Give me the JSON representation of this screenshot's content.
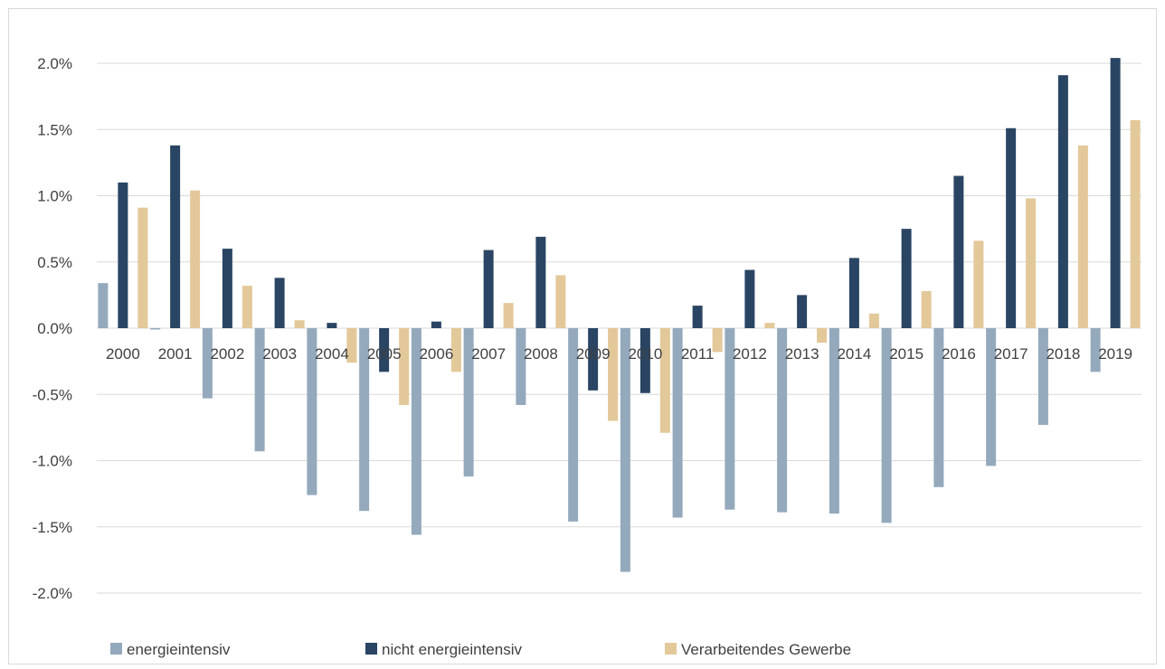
{
  "chart_data": {
    "type": "bar",
    "title": "",
    "xlabel": "",
    "ylabel": "",
    "categories": [
      "2000",
      "2001",
      "2002",
      "2003",
      "2004",
      "2005",
      "2006",
      "2007",
      "2008",
      "2009",
      "2010",
      "2011",
      "2012",
      "2013",
      "2014",
      "2015",
      "2016",
      "2017",
      "2018",
      "2019"
    ],
    "series": [
      {
        "name": "energieintensiv",
        "color": "#94a9bc",
        "values": [
          0.34,
          -0.01,
          -0.53,
          -0.93,
          -1.26,
          -1.38,
          -1.56,
          -1.12,
          -0.58,
          -1.46,
          -1.84,
          -1.43,
          -1.37,
          -1.39,
          -1.4,
          -1.47,
          -1.2,
          -1.04,
          -0.73,
          -0.33
        ]
      },
      {
        "name": "nicht energieintensiv",
        "color": "#2a4563",
        "values": [
          1.1,
          1.38,
          0.6,
          0.38,
          0.04,
          -0.33,
          0.05,
          0.59,
          0.69,
          -0.47,
          -0.49,
          0.17,
          0.44,
          0.25,
          0.53,
          0.75,
          1.15,
          1.51,
          1.91,
          2.04
        ]
      },
      {
        "name": "Verarbeitendes Gewerbe",
        "color": "#e3c89a",
        "values": [
          0.91,
          1.04,
          0.32,
          0.06,
          -0.26,
          -0.58,
          -0.33,
          0.19,
          0.4,
          -0.7,
          -0.79,
          -0.18,
          0.04,
          -0.11,
          0.11,
          0.28,
          0.66,
          0.98,
          1.38,
          1.57
        ]
      }
    ],
    "ylim": [
      -2.0,
      2.0
    ],
    "y_ticks": [
      "2.0%",
      "1.5%",
      "1.0%",
      "0.5%",
      "0.0%",
      "-0.5%",
      "-1.0%",
      "-1.5%",
      "-2.0%"
    ],
    "y_tick_values": [
      2.0,
      1.5,
      1.0,
      0.5,
      0.0,
      -0.5,
      -1.0,
      -1.5,
      -2.0
    ],
    "grid": true,
    "legend_position": "bottom",
    "gridline_color": "#d9d9d9"
  }
}
